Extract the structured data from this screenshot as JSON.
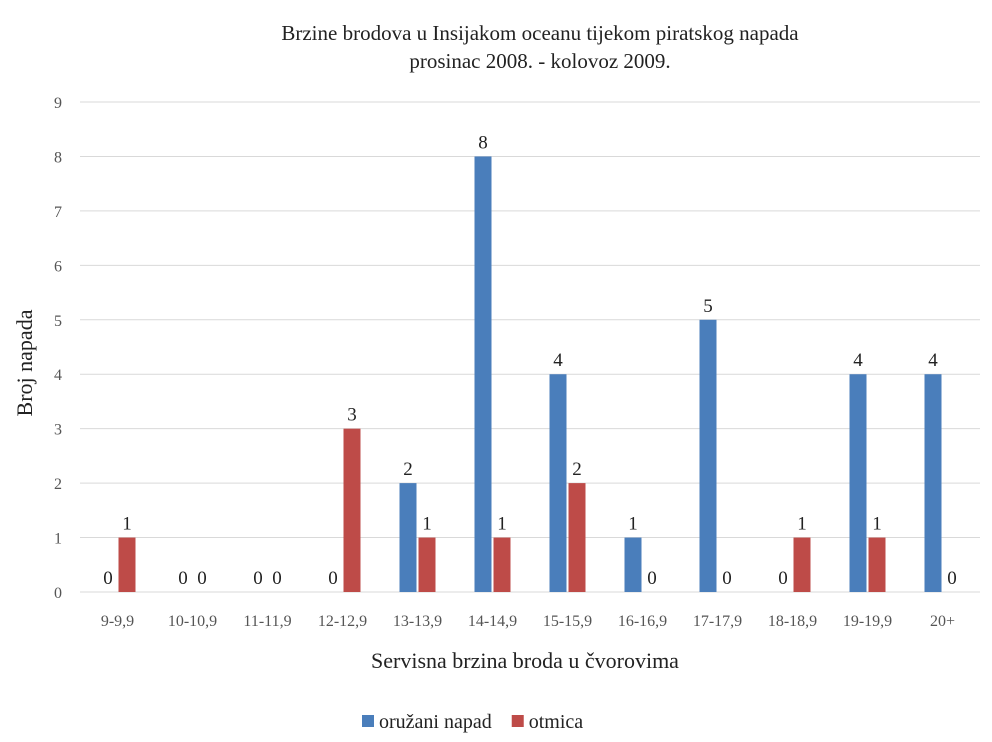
{
  "chart_data": {
    "type": "bar",
    "title": "Brzine brodova u Insijakom oceanu tijekom piratskog napada",
    "subtitle": "prosinac 2008. - kolovoz 2009.",
    "xlabel": "Servisna brzina broda u čvorovima",
    "ylabel": "Broj napada",
    "ylim": [
      0,
      9
    ],
    "yticks": [
      "0",
      "1",
      "2",
      "3",
      "4",
      "5",
      "6",
      "7",
      "8",
      "9"
    ],
    "grid": true,
    "legend_position": "bottom",
    "categories": [
      "9-9,9",
      "10-10,9",
      "11-11,9",
      "12-12,9",
      "13-13,9",
      "14-14,9",
      "15-15,9",
      "16-16,9",
      "17-17,9",
      "18-18,9",
      "19-19,9",
      "20+"
    ],
    "series": [
      {
        "name": "oružani napad",
        "color": "#4a7ebb",
        "values": [
          0,
          0,
          0,
          0,
          2,
          8,
          4,
          1,
          5,
          0,
          4,
          4
        ]
      },
      {
        "name": "otmica",
        "color": "#be4b48",
        "values": [
          1,
          0,
          0,
          3,
          1,
          1,
          2,
          0,
          0,
          1,
          1,
          0
        ]
      }
    ]
  }
}
